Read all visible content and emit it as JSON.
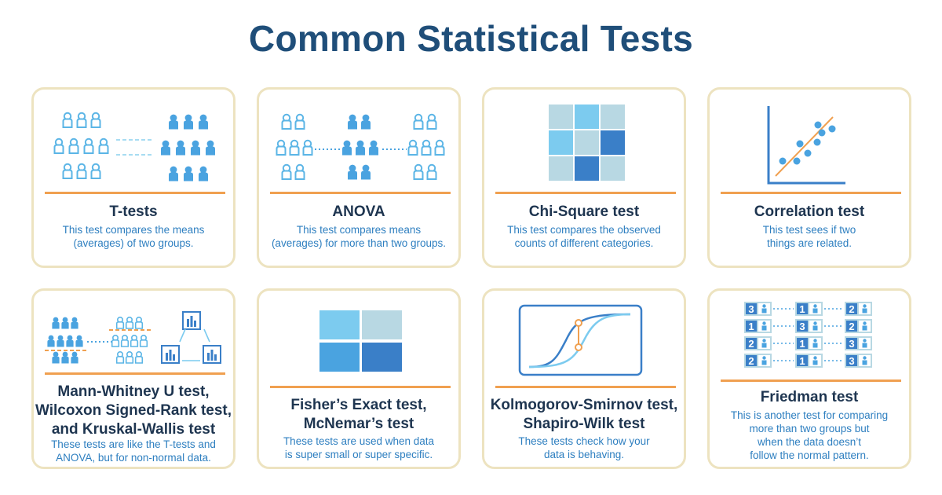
{
  "page": {
    "title": "Common Statistical Tests"
  },
  "colors": {
    "dark_blue": "#1f4e79",
    "accent_orange": "#f0a050",
    "card_border": "#ede3c0",
    "light_blue": "#7ccbef",
    "mid_blue": "#4aa3e0",
    "deep_blue": "#3a7fc8",
    "pale_blue": "#b8d8e3",
    "desc_blue": "#2e7fc0"
  },
  "cards": [
    {
      "title_lines": [
        "T-tests"
      ],
      "desc_lines": [
        "This test compares the means",
        "(averages) of two groups."
      ]
    },
    {
      "title_lines": [
        "ANOVA"
      ],
      "desc_lines": [
        "This test compares means",
        "(averages) for more than two groups."
      ]
    },
    {
      "title_lines": [
        "Chi-Square test"
      ],
      "desc_lines": [
        "This test compares the observed",
        "counts of different categories."
      ]
    },
    {
      "title_lines": [
        "Correlation test"
      ],
      "desc_lines": [
        "This test sees if two",
        "things are related."
      ]
    },
    {
      "title_lines": [
        "Mann-Whitney U test,",
        "Wilcoxon Signed-Rank test,",
        "and Kruskal-Wallis test"
      ],
      "desc_lines": [
        "These tests are like the T-tests and",
        "ANOVA, but for non-normal data."
      ]
    },
    {
      "title_lines": [
        "Fisher’s Exact test,",
        "McNemar’s test"
      ],
      "desc_lines": [
        "These tests are used when data",
        "is super small or super specific."
      ]
    },
    {
      "title_lines": [
        "Kolmogorov-Smirnov test,",
        "Shapiro-Wilk test"
      ],
      "desc_lines": [
        "These tests check how your",
        "data is behaving."
      ]
    },
    {
      "title_lines": [
        "Friedman test"
      ],
      "desc_lines": [
        "This is another test for comparing",
        "more than two groups but",
        "when the data doesn’t",
        "follow the normal pattern."
      ]
    }
  ],
  "friedman_ranks": [
    [
      "3",
      "1",
      "2"
    ],
    [
      "1",
      "3",
      "2"
    ],
    [
      "2",
      "1",
      "3"
    ],
    [
      "2",
      "1",
      "3"
    ]
  ],
  "icons": [
    "people-group-icon",
    "people-groups-icon",
    "contingency-grid-icon",
    "scatter-plot-icon",
    "ranked-distribution-icon",
    "two-by-two-table-icon",
    "cdf-curves-icon",
    "rank-table-icon"
  ]
}
